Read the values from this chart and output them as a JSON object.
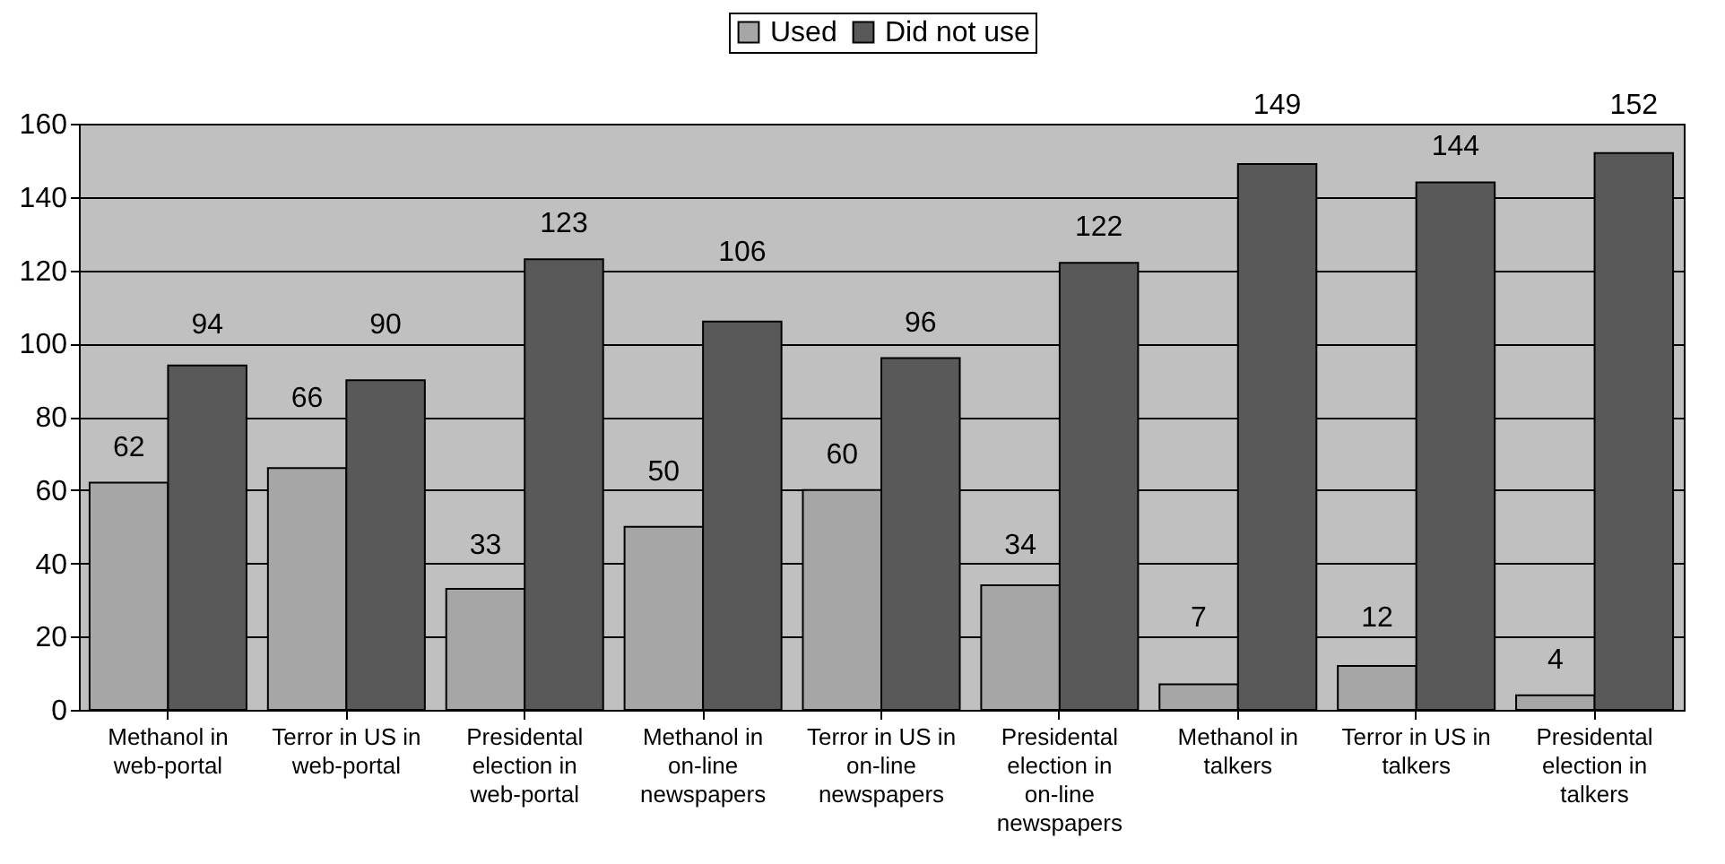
{
  "chart_data": {
    "type": "bar",
    "categories": [
      "Methanol in web-portal",
      "Terror in US in web-portal",
      "Presidental election in web-portal",
      "Methanol in on-line newspapers",
      "Terror in US in on-line newspapers",
      "Presidental election in on-line newspapers",
      "Methanol in talkers",
      "Terror in US in talkers",
      "Presidental election in talkers"
    ],
    "series": [
      {
        "name": "Used",
        "color": "#a6a6a6",
        "values": [
          62,
          66,
          33,
          50,
          60,
          34,
          7,
          12,
          4
        ]
      },
      {
        "name": "Did not use",
        "color": "#595959",
        "values": [
          94,
          90,
          123,
          106,
          96,
          122,
          149,
          144,
          152
        ]
      }
    ],
    "ylim": [
      0,
      160
    ],
    "yticks": [
      0,
      20,
      40,
      60,
      80,
      100,
      120,
      140,
      160
    ],
    "grid": "y",
    "legend": "top",
    "data_labels": true
  }
}
